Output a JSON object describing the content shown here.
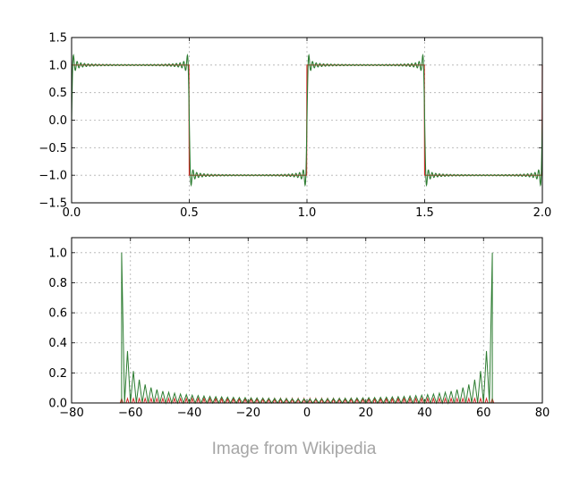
{
  "caption": "Image from Wikipedia",
  "colors": {
    "square_wave": "#d62728",
    "partial_sum": "#2e7d32",
    "grid": "#b0b0b0"
  },
  "chart_data": [
    {
      "type": "line",
      "title": "",
      "xlabel": "",
      "ylabel": "",
      "xlim": [
        0.0,
        2.0
      ],
      "ylim": [
        -1.5,
        1.5
      ],
      "xticks": [
        "0.0",
        "0.5",
        "1.0",
        "1.5",
        "2.0"
      ],
      "yticks": [
        "−1.5",
        "−1.0",
        "−0.5",
        "0.0",
        "0.5",
        "1.0",
        "1.5"
      ],
      "grid": true,
      "legend": "none",
      "series": [
        {
          "kind": "square_wave",
          "period": 1.0,
          "amplitude": 1.0,
          "color": "#d62728"
        },
        {
          "kind": "fourier_partial_sum",
          "harmonics": "odd 1..63",
          "period": 1.0,
          "color": "#2e7d32"
        }
      ]
    },
    {
      "type": "line",
      "title": "",
      "xlabel": "",
      "ylabel": "",
      "xlim": [
        -80,
        80
      ],
      "ylim": [
        0.0,
        1.1
      ],
      "xticks": [
        "−80",
        "−60",
        "−40",
        "−20",
        "0",
        "20",
        "40",
        "60",
        "80"
      ],
      "yticks": [
        "0.0",
        "0.2",
        "0.4",
        "0.6",
        "0.8",
        "1.0"
      ],
      "grid": true,
      "legend": "none",
      "series": [
        {
          "kind": "spectrum_small",
          "range": [
            -63,
            63
          ],
          "peak": 0.03,
          "color": "#d62728"
        },
        {
          "kind": "spectrum_edges",
          "peaks_at": [
            -63,
            63
          ],
          "peak": 1.0,
          "color": "#2e7d32"
        }
      ]
    }
  ]
}
